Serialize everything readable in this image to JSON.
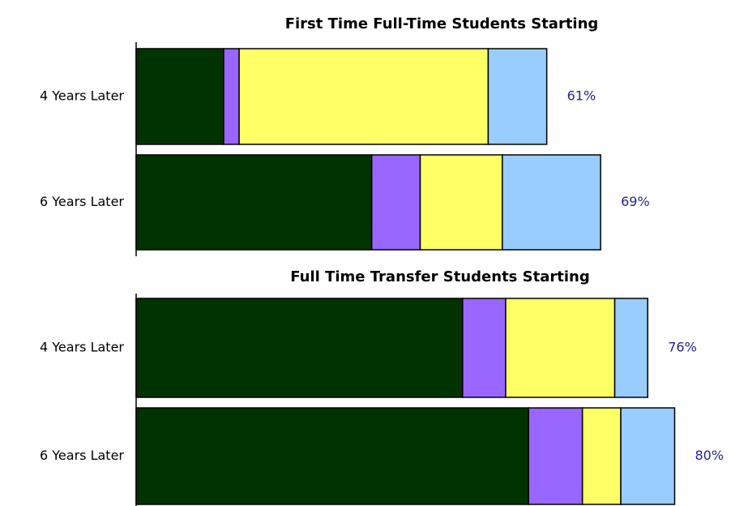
{
  "chart_data": [
    {
      "type": "stacked-barh",
      "title": "First Time Full-Time Students Starting",
      "categories": [
        "4 Years Later",
        "6 Years Later"
      ],
      "series": [
        {
          "color": "#003300",
          "values": [
            13,
            35
          ]
        },
        {
          "color": "#9966ff",
          "values": [
            2.3,
            7.2
          ]
        },
        {
          "color": "#ffff66",
          "values": [
            37,
            12.2
          ]
        },
        {
          "color": "#99ccff",
          "values": [
            8.7,
            14.6
          ]
        }
      ],
      "totals": [
        61,
        69
      ],
      "total_labels": [
        "61%",
        "69%"
      ],
      "xlim": [
        0,
        85
      ]
    },
    {
      "type": "stacked-barh",
      "title": "Full Time Transfer Students Starting",
      "categories": [
        "4 Years Later",
        "6 Years Later"
      ],
      "series": [
        {
          "color": "#003300",
          "values": [
            48.5,
            58.3
          ]
        },
        {
          "color": "#9966ff",
          "values": [
            6.4,
            8
          ]
        },
        {
          "color": "#ffff66",
          "values": [
            16.2,
            5.7
          ]
        },
        {
          "color": "#99ccff",
          "values": [
            4.9,
            8
          ]
        }
      ],
      "totals": [
        76,
        80
      ],
      "total_labels": [
        "76%",
        "80%"
      ],
      "xlim": [
        0,
        85
      ]
    }
  ]
}
